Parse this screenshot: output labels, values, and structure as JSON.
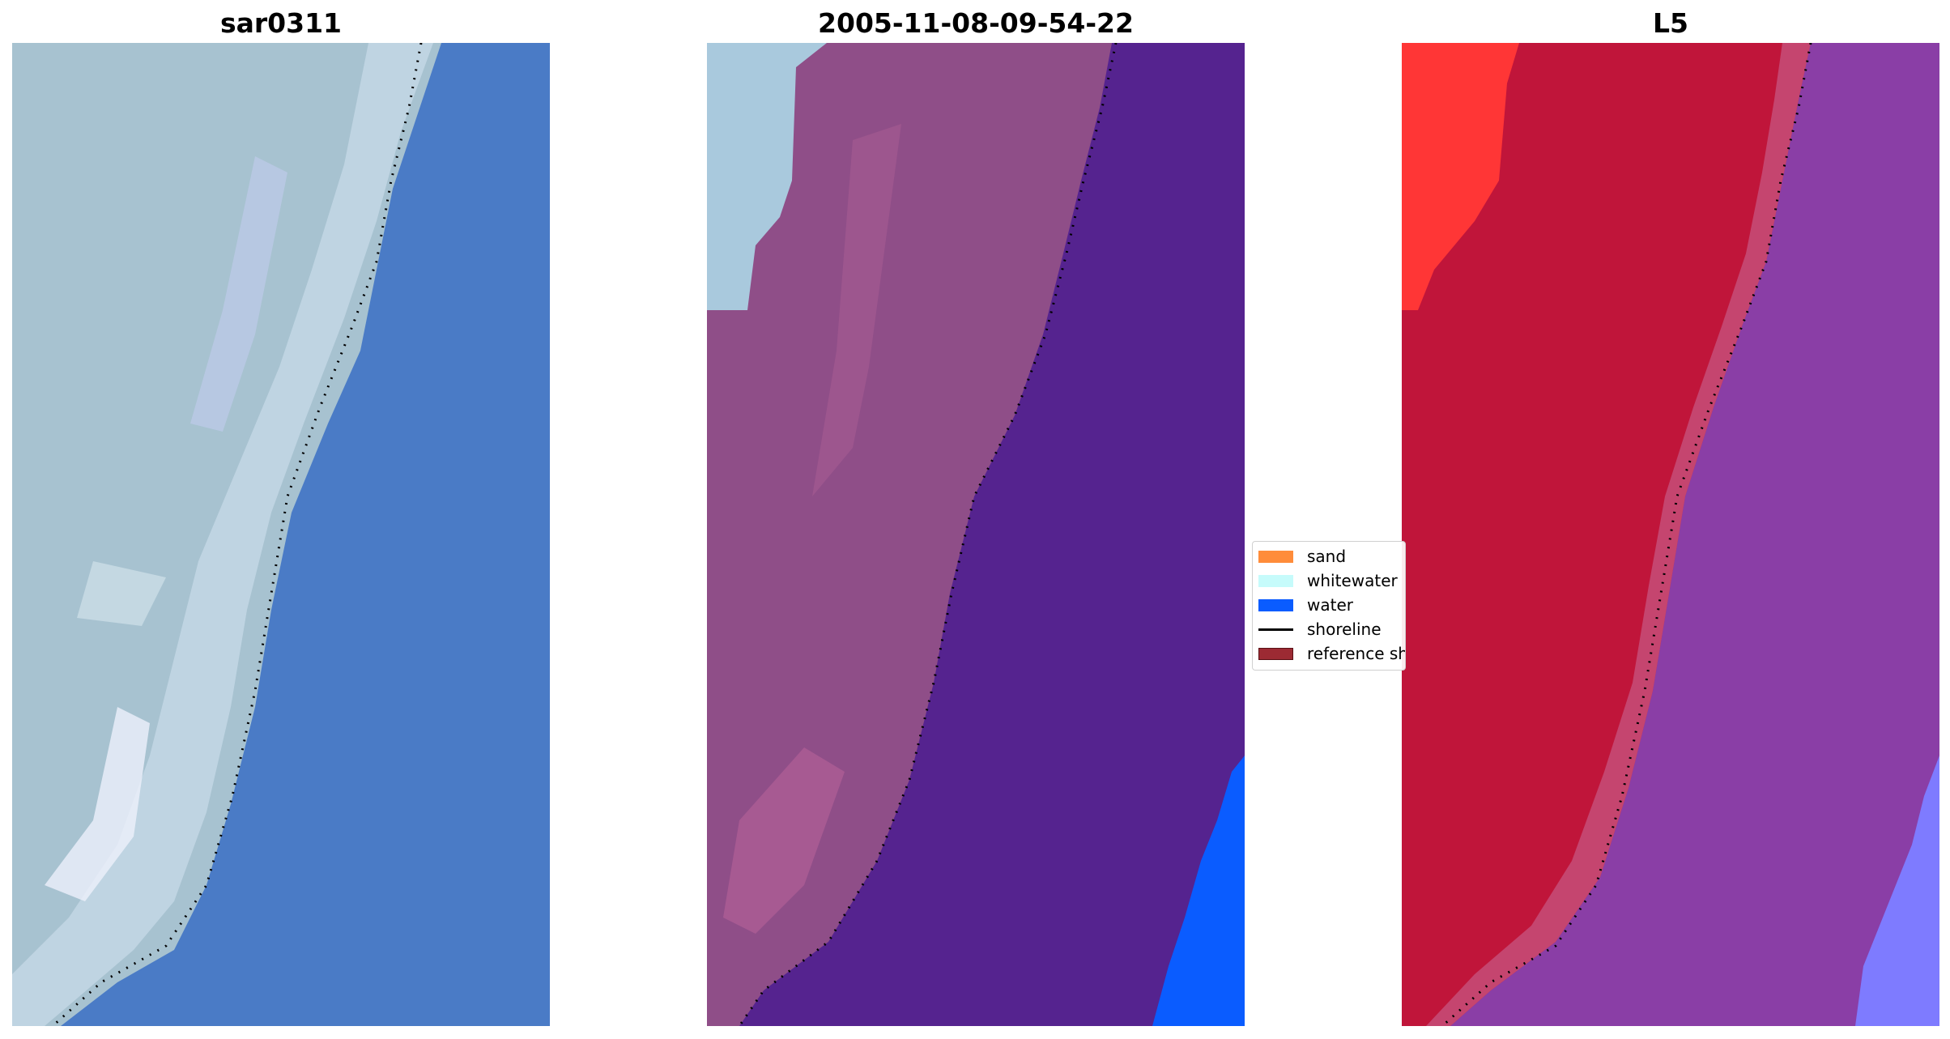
{
  "panels": [
    {
      "title": "sar0311"
    },
    {
      "title": "2005-11-08-09-54-22"
    },
    {
      "title": "L5"
    }
  ],
  "legend": {
    "items": [
      {
        "label": "sand",
        "color": "#ff8c3a",
        "kind": "patch"
      },
      {
        "label": "whitewater",
        "color": "#c6fbfb",
        "kind": "patch"
      },
      {
        "label": "water",
        "color": "#0a5cff",
        "kind": "patch"
      },
      {
        "label": "shoreline",
        "color": "#000000",
        "kind": "line"
      },
      {
        "label": "reference shoreline",
        "color": "#9c2a33",
        "kind": "patch"
      }
    ]
  },
  "colors": {
    "rgb_sand": "#a9c4d3",
    "rgb_water": "#4a7cc6",
    "class_land": "#8f4e88",
    "class_water": "#55238f",
    "class_whitewater_left": "#a9c9dd",
    "class_water_blue": "#0a5cff",
    "nir_land": "#c0153a",
    "nir_bright": "#ff3636",
    "nir_water": "#8a3ea6",
    "nir_shallow": "#7e7bff",
    "shoreline": "#000000"
  }
}
